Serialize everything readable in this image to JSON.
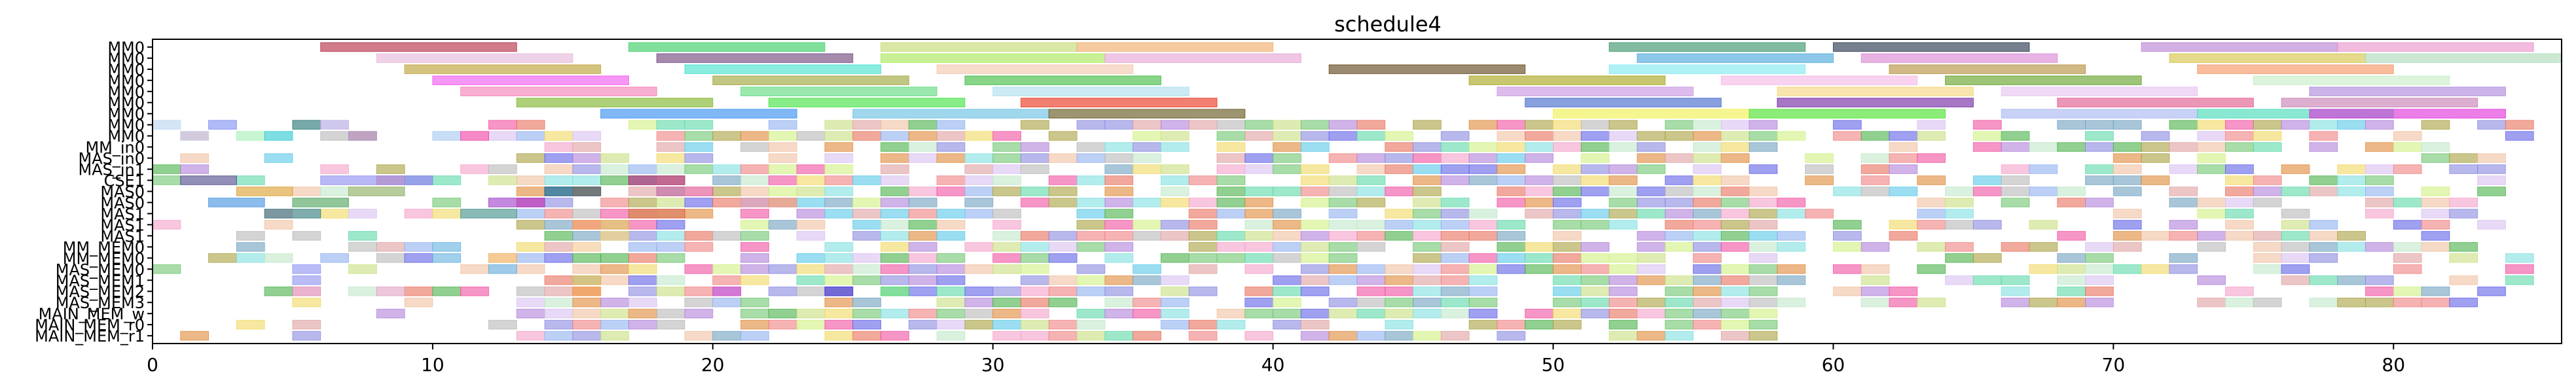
{
  "chart_data": {
    "type": "gantt",
    "title": "schedule4",
    "xlabel": "",
    "ylabel": "",
    "xlim": [
      0,
      86
    ],
    "x_ticks": [
      0,
      10,
      20,
      30,
      40,
      50,
      60,
      70,
      80
    ],
    "grid": false,
    "legend": "none",
    "rows": [
      "MM0",
      "MM0",
      "MM0",
      "MM0",
      "MM0",
      "MM0",
      "MM0",
      "MM0",
      "MM0",
      "MM_in0",
      "MAS_in0",
      "MAS_in1",
      "CSE1",
      "MAS0",
      "MAS0",
      "MAS1",
      "MAS1",
      "MAS1",
      "MM_MEM0",
      "MM_MEM0",
      "MAS_MEM0",
      "MAS_MEM1",
      "MAS_MEM2",
      "MAS_MEM3",
      "MAIN_MEM_w",
      "MAIN_MEM_r0",
      "MAIN_MEM_r1"
    ],
    "tasks": [
      {
        "row": 0,
        "start": 6,
        "end": 13,
        "color": "#b0243c"
      },
      {
        "row": 0,
        "start": 17,
        "end": 24,
        "color": "#2ecc5a"
      },
      {
        "row": 0,
        "start": 26,
        "end": 33,
        "color": "#c2d96a"
      },
      {
        "row": 0,
        "start": 33,
        "end": 40,
        "color": "#f0a860"
      },
      {
        "row": 0,
        "start": 52,
        "end": 59,
        "color": "#2e9060"
      },
      {
        "row": 0,
        "start": 60,
        "end": 67,
        "color": "#1c2c44"
      },
      {
        "row": 0,
        "start": 71,
        "end": 78,
        "color": "#b47cd0"
      },
      {
        "row": 0,
        "start": 78,
        "end": 85,
        "color": "#e890c8"
      },
      {
        "row": 1,
        "start": 8,
        "end": 15,
        "color": "#e6b4d8"
      },
      {
        "row": 1,
        "start": 18,
        "end": 25,
        "color": "#6a3c78"
      },
      {
        "row": 1,
        "start": 26,
        "end": 34,
        "color": "#a4e850"
      },
      {
        "row": 1,
        "start": 34,
        "end": 41,
        "color": "#e4a0d4"
      },
      {
        "row": 1,
        "start": 53,
        "end": 60,
        "color": "#42a4d8"
      },
      {
        "row": 1,
        "start": 61,
        "end": 68,
        "color": "#d880d0"
      },
      {
        "row": 1,
        "start": 72,
        "end": 79,
        "color": "#d4c040"
      },
      {
        "row": 1,
        "start": 79,
        "end": 86,
        "color": "#a8d8b8"
      },
      {
        "row": 2,
        "start": 9,
        "end": 16,
        "color": "#b89c2c"
      },
      {
        "row": 2,
        "start": 19,
        "end": 26,
        "color": "#3ae0c8"
      },
      {
        "row": 2,
        "start": 28,
        "end": 35,
        "color": "#f2c4a8"
      },
      {
        "row": 2,
        "start": 42,
        "end": 49,
        "color": "#5a3c10"
      },
      {
        "row": 2,
        "start": 52,
        "end": 59,
        "color": "#7ce8f0"
      },
      {
        "row": 2,
        "start": 62,
        "end": 69,
        "color": "#b08a34"
      },
      {
        "row": 2,
        "start": 73,
        "end": 80,
        "color": "#f4905c"
      },
      {
        "row": 3,
        "start": 10,
        "end": 17,
        "color": "#f050f0"
      },
      {
        "row": 3,
        "start": 20,
        "end": 27,
        "color": "#9aa030"
      },
      {
        "row": 3,
        "start": 29,
        "end": 36,
        "color": "#38b838"
      },
      {
        "row": 3,
        "start": 47,
        "end": 54,
        "color": "#a4a010"
      },
      {
        "row": 3,
        "start": 56,
        "end": 63,
        "color": "#f4b4e4"
      },
      {
        "row": 3,
        "start": 64,
        "end": 71,
        "color": "#5c9c1c"
      },
      {
        "row": 3,
        "start": 75,
        "end": 82,
        "color": "#c4ecc4"
      },
      {
        "row": 4,
        "start": 11,
        "end": 18,
        "color": "#f478b0"
      },
      {
        "row": 4,
        "start": 21,
        "end": 28,
        "color": "#58d878"
      },
      {
        "row": 4,
        "start": 30,
        "end": 37,
        "color": "#a8dcec"
      },
      {
        "row": 4,
        "start": 48,
        "end": 55,
        "color": "#c490e0"
      },
      {
        "row": 4,
        "start": 58,
        "end": 65,
        "color": "#f4d478"
      },
      {
        "row": 4,
        "start": 66,
        "end": 73,
        "color": "#e4c0f0"
      },
      {
        "row": 4,
        "start": 77,
        "end": 84,
        "color": "#a884d8"
      },
      {
        "row": 5,
        "start": 13,
        "end": 20,
        "color": "#78b020"
      },
      {
        "row": 5,
        "start": 22,
        "end": 29,
        "color": "#38e038"
      },
      {
        "row": 5,
        "start": 31,
        "end": 38,
        "color": "#e82c14"
      },
      {
        "row": 5,
        "start": 49,
        "end": 56,
        "color": "#3a60c8"
      },
      {
        "row": 5,
        "start": 58,
        "end": 65,
        "color": "#6c1ca0"
      },
      {
        "row": 5,
        "start": 68,
        "end": 75,
        "color": "#e05088"
      },
      {
        "row": 5,
        "start": 76,
        "end": 83,
        "color": "#c478b0"
      },
      {
        "row": 6,
        "start": 16,
        "end": 23,
        "color": "#2c88f0"
      },
      {
        "row": 6,
        "start": 25,
        "end": 32,
        "color": "#60bce0"
      },
      {
        "row": 6,
        "start": 32,
        "end": 39,
        "color": "#5c4c10"
      },
      {
        "row": 6,
        "start": 50,
        "end": 57,
        "color": "#f0f048"
      },
      {
        "row": 6,
        "start": 57,
        "end": 64,
        "color": "#40e020"
      },
      {
        "row": 6,
        "start": 66,
        "end": 73,
        "color": "#a4b4f0"
      },
      {
        "row": 6,
        "start": 73,
        "end": 80,
        "color": "#3cd8b4"
      },
      {
        "row": 6,
        "start": 77,
        "end": 84,
        "color": "#e028d8"
      },
      {
        "row": 7,
        "start": 0,
        "end": 1,
        "color": "#b8d4f0"
      },
      {
        "row": 7,
        "start": 2,
        "end": 3,
        "color": "#7a8cf0"
      },
      {
        "row": 7,
        "start": 5,
        "end": 6,
        "color": "#1c7070"
      },
      {
        "row": 7,
        "start": 6,
        "end": 7,
        "color": "#e0b0ec"
      },
      {
        "row": 8,
        "start": 1,
        "end": 2,
        "color": "#bcecec"
      },
      {
        "row": 8,
        "start": 3,
        "end": 4,
        "color": "#a4f0b8"
      },
      {
        "row": 8,
        "start": 4,
        "end": 5,
        "color": "#28c8d0"
      },
      {
        "row": 8,
        "start": 7,
        "end": 8,
        "color": "#a0a0d8"
      },
      {
        "row": 8,
        "start": 10,
        "end": 11,
        "color": "#a4c8f0"
      },
      {
        "row": 8,
        "start": 11,
        "end": 12,
        "color": "#f03ca0"
      },
      {
        "row": 12,
        "start": 1,
        "end": 3,
        "color": "#4a4488"
      },
      {
        "row": 12,
        "start": 6,
        "end": 10,
        "color": "#8a88f0"
      },
      {
        "row": 12,
        "start": 17,
        "end": 19,
        "color": "#a82050"
      },
      {
        "row": 13,
        "start": 3,
        "end": 5,
        "color": "#d89c28"
      },
      {
        "row": 13,
        "start": 7,
        "end": 9,
        "color": "#88a858"
      },
      {
        "row": 13,
        "start": 14,
        "end": 16,
        "color": "#205070"
      },
      {
        "row": 13,
        "start": 18,
        "end": 20,
        "color": "#e04c8c"
      },
      {
        "row": 14,
        "start": 2,
        "end": 4,
        "color": "#4090e0"
      },
      {
        "row": 14,
        "start": 5,
        "end": 7,
        "color": "#48a058"
      },
      {
        "row": 14,
        "start": 12,
        "end": 14,
        "color": "#9c38c8"
      },
      {
        "row": 14,
        "start": 21,
        "end": 23,
        "color": "#e4a0a0"
      },
      {
        "row": 15,
        "start": 4,
        "end": 6,
        "color": "#2c7878"
      },
      {
        "row": 15,
        "start": 11,
        "end": 13,
        "color": "#3c8c84"
      },
      {
        "row": 15,
        "start": 17,
        "end": 19,
        "color": "#e04c40"
      },
      {
        "row": 16,
        "start": 15,
        "end": 17,
        "color": "#f0b050"
      },
      {
        "row": 17,
        "start": 16,
        "end": 17,
        "color": "#f0e070"
      },
      {
        "row": 18,
        "start": 7,
        "end": 8,
        "color": "#b8bcb8"
      },
      {
        "row": 18,
        "start": 10,
        "end": 11,
        "color": "#60b0e0"
      },
      {
        "row": 18,
        "start": 15,
        "end": 16,
        "color": "#f4c890"
      },
      {
        "row": 19,
        "start": 10,
        "end": 11,
        "color": "#60b0e0"
      },
      {
        "row": 19,
        "start": 12,
        "end": 13,
        "color": "#f0a850"
      },
      {
        "row": 20,
        "start": 5,
        "end": 6,
        "color": "#8a90f0"
      },
      {
        "row": 20,
        "start": 12,
        "end": 13,
        "color": "#60a8d8"
      },
      {
        "row": 21,
        "start": 5,
        "end": 6,
        "color": "#8a90f0"
      },
      {
        "row": 21,
        "start": 15,
        "end": 16,
        "color": "#e8a840"
      },
      {
        "row": 22,
        "start": 5,
        "end": 6,
        "color": "#e080b0"
      },
      {
        "row": 22,
        "start": 8,
        "end": 9,
        "color": "#e0a0c0"
      },
      {
        "row": 22,
        "start": 15,
        "end": 16,
        "color": "#f0a850"
      },
      {
        "row": 22,
        "start": 20,
        "end": 21,
        "color": "#e040c0"
      },
      {
        "row": 22,
        "start": 24,
        "end": 25,
        "color": "#2020e0"
      },
      {
        "row": 22,
        "start": 26,
        "end": 27,
        "color": "#40e060"
      }
    ],
    "dense_fill": {
      "rows_from": 7,
      "rows_to": 27,
      "x_start": 0,
      "x_end": 60,
      "palette": [
        "#6ec46e",
        "#f4a0c8",
        "#8888e0",
        "#c8e080",
        "#58c8e8",
        "#e8705c",
        "#b080d8",
        "#f0d860",
        "#5cd8a8",
        "#e0a0a0",
        "#90b0f0",
        "#d0f080",
        "#a8a040",
        "#f050a0",
        "#70a0c0",
        "#c0e8c8",
        "#e08838",
        "#6060e8",
        "#48b048",
        "#d8c0f0",
        "#f08080",
        "#80e0e0",
        "#b8b8b8",
        "#f0c0a0"
      ]
    }
  }
}
